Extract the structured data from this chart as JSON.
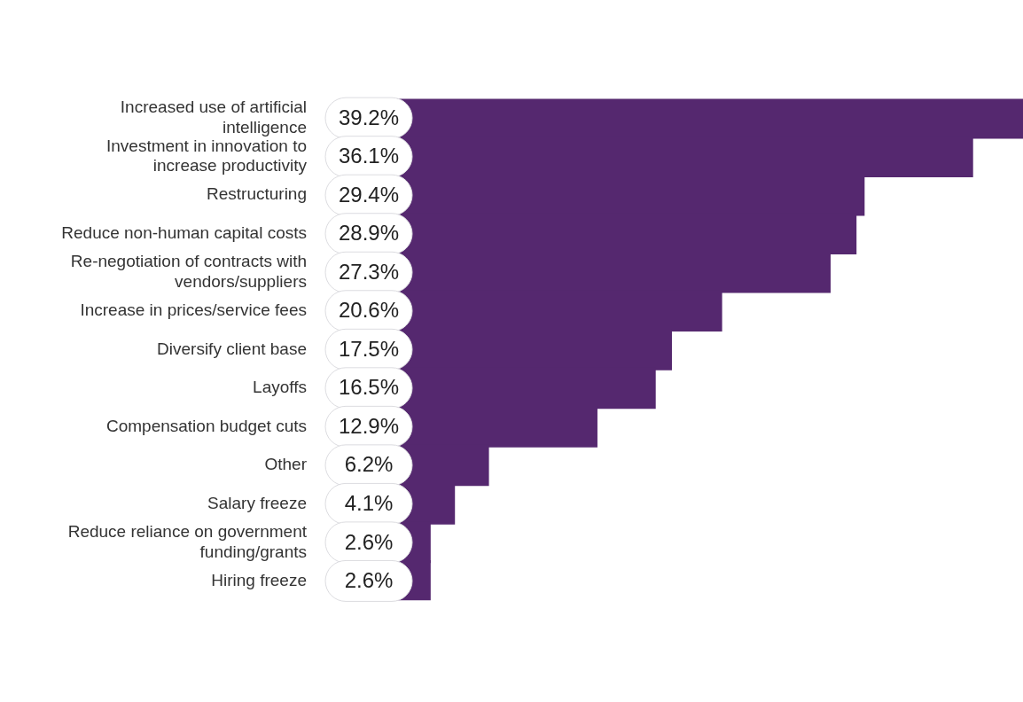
{
  "chart_data": {
    "type": "bar",
    "orientation": "horizontal",
    "categories": [
      "Increased use of artificial intelligence",
      "Investment in innovation to increase productivity",
      "Restructuring",
      "Reduce non-human capital costs",
      "Re-negotiation of contracts with vendors/suppliers",
      "Increase in prices/service fees",
      "Diversify client base",
      "Layoffs",
      "Compensation budget cuts",
      "Other",
      "Salary freeze",
      "Reduce reliance on government funding/grants",
      "Hiring freeze"
    ],
    "values": [
      39.2,
      36.1,
      29.4,
      28.9,
      27.3,
      20.6,
      17.5,
      16.5,
      12.9,
      6.2,
      4.1,
      2.6,
      2.6
    ],
    "value_labels": [
      "39.2%",
      "36.1%",
      "29.4%",
      "28.9%",
      "27.3%",
      "20.6%",
      "17.5%",
      "16.5%",
      "12.9%",
      "6.2%",
      "4.1%",
      "2.6%",
      "2.6%"
    ],
    "color": "#55286f",
    "grid": false,
    "legend": false,
    "tick_labels": "y"
  }
}
